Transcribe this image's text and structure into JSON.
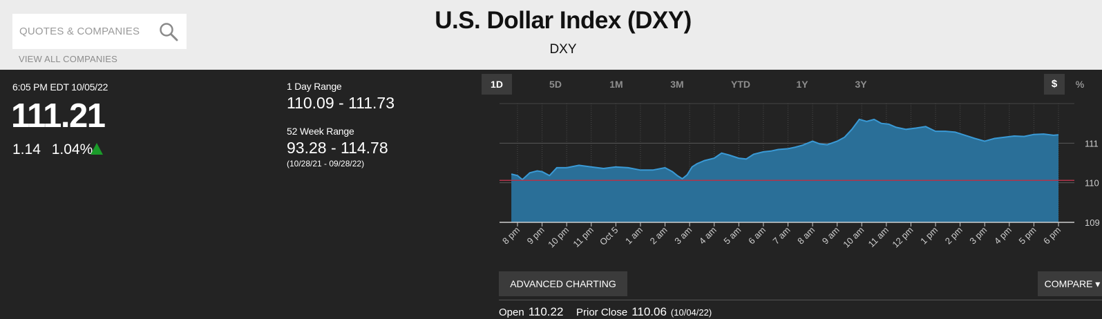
{
  "header": {
    "search_placeholder": "QUOTES & COMPANIES",
    "view_all": "VIEW ALL COMPANIES",
    "title": "U.S. Dollar Index (DXY)",
    "symbol": "DXY"
  },
  "quote": {
    "time": "6:05 PM EDT 10/05/22",
    "price": "111.21",
    "change": "1.14",
    "change_pct": "1.04%",
    "direction": "up",
    "up_color": "#1a9b2a"
  },
  "ranges": {
    "day_label": "1 Day Range",
    "day_value": "110.09 - 111.73",
    "week52_label": "52 Week Range",
    "week52_value": "93.28 - 114.78",
    "week52_dates": "(10/28/21 - 09/28/22)"
  },
  "periods": [
    {
      "label": "1D",
      "active": true
    },
    {
      "label": "5D",
      "active": false
    },
    {
      "label": "1M",
      "active": false
    },
    {
      "label": "3M",
      "active": false
    },
    {
      "label": "YTD",
      "active": false
    },
    {
      "label": "1Y",
      "active": false
    },
    {
      "label": "3Y",
      "active": false
    }
  ],
  "currency_toggle": {
    "dollar": "$",
    "percent": "%"
  },
  "buttons": {
    "advanced": "ADVANCED CHARTING",
    "compare": "COMPARE"
  },
  "stats": {
    "open_label": "Open",
    "open_value": "110.22",
    "prior_close_label": "Prior Close",
    "prior_close_value": "110.06",
    "prior_close_date": "(10/04/22)"
  },
  "chart_data": {
    "type": "area",
    "ylim": [
      109,
      112
    ],
    "yticks": [
      109,
      110,
      111
    ],
    "xticks": [
      "8 pm",
      "9 pm",
      "10 pm",
      "11 pm",
      "Oct 5",
      "1 am",
      "2 am",
      "3 am",
      "4 am",
      "5 am",
      "6 am",
      "7 am",
      "8 am",
      "9 am",
      "10 am",
      "11 am",
      "12 pm",
      "1 pm",
      "2 pm",
      "3 pm",
      "4 pm",
      "5 pm",
      "6 pm"
    ],
    "series": [
      {
        "x": [
          -0.25,
          0,
          0.2,
          0.5,
          0.8,
          1.0,
          1.3,
          1.6,
          2.0,
          2.5,
          3.0,
          3.5,
          4.0,
          4.5,
          5.0,
          5.5,
          6.0,
          6.3,
          6.5,
          6.7,
          6.9,
          7.1,
          7.3,
          7.6,
          8.0,
          8.3,
          8.6,
          9.0,
          9.3,
          9.6,
          10.0,
          10.3,
          10.6,
          11.0,
          11.3,
          11.6,
          12.0,
          12.3,
          12.6,
          13.0,
          13.3,
          13.6,
          13.9,
          14.2,
          14.5,
          14.8,
          15.1,
          15.4,
          15.8,
          16.2,
          16.6,
          17.0,
          17.4,
          17.8,
          18.2,
          18.6,
          19.0,
          19.4,
          19.8,
          20.2,
          20.6,
          21.0,
          21.4,
          21.8,
          22.0
        ],
        "y": [
          110.22,
          110.18,
          110.08,
          110.25,
          110.3,
          110.28,
          110.18,
          110.38,
          110.38,
          110.44,
          110.4,
          110.36,
          110.4,
          110.38,
          110.32,
          110.32,
          110.38,
          110.28,
          110.18,
          110.1,
          110.2,
          110.4,
          110.48,
          110.56,
          110.62,
          110.75,
          110.7,
          110.62,
          110.6,
          110.72,
          110.78,
          110.8,
          110.84,
          110.86,
          110.9,
          110.95,
          111.05,
          110.98,
          110.96,
          111.05,
          111.15,
          111.35,
          111.6,
          111.55,
          111.6,
          111.5,
          111.48,
          111.4,
          111.35,
          111.38,
          111.42,
          111.3,
          111.3,
          111.28,
          111.2,
          111.12,
          111.05,
          111.12,
          111.15,
          111.18,
          111.17,
          111.22,
          111.23,
          111.2,
          111.21
        ]
      }
    ],
    "prior_close": 110.06,
    "line_color": "#3a9ad6",
    "area_color": "#2a6f98",
    "prior_close_color": "#b0344a",
    "grid": true
  }
}
